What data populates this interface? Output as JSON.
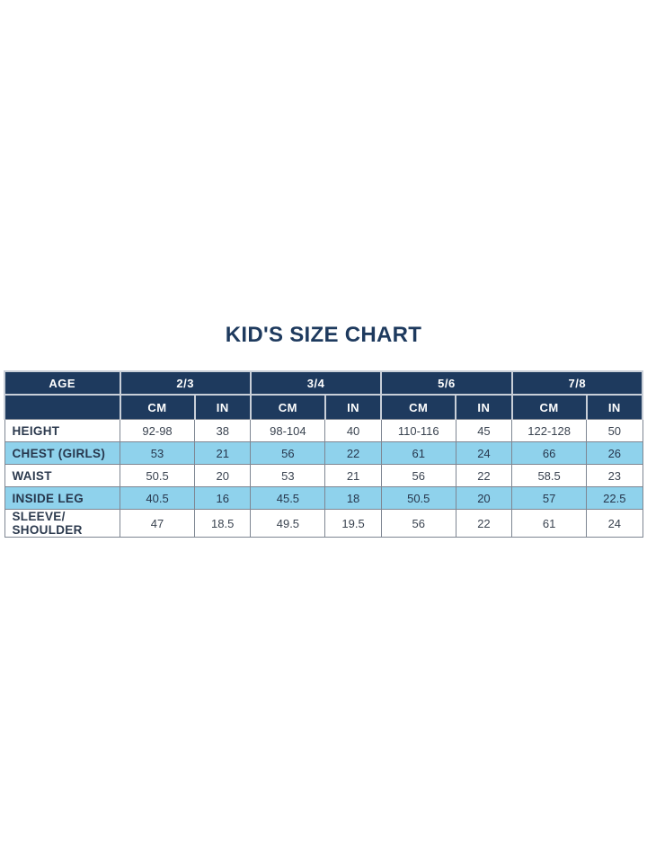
{
  "colors": {
    "header_navy": "#1e3a5e",
    "highlight_blue": "#8fd2ec",
    "row_white": "#ffffff",
    "title_text": "#1e3a5e",
    "header_text": "#ffffff",
    "data_text": "#3a4350",
    "grid_border": "#7e8692",
    "header_separator": "#c9cfd8"
  },
  "chart_data": {
    "type": "table",
    "title": "KID'S SIZE CHART",
    "header": {
      "age_label": "AGE",
      "age_groups": [
        "2/3",
        "3/4",
        "5/6",
        "7/8"
      ],
      "units": [
        "CM",
        "IN"
      ]
    },
    "columns": [
      "AGE",
      "2/3 CM",
      "2/3 IN",
      "3/4 CM",
      "3/4 IN",
      "5/6 CM",
      "5/6 IN",
      "7/8 CM",
      "7/8 IN"
    ],
    "rows": [
      {
        "label": "HEIGHT",
        "highlight": false,
        "values": [
          "92-98",
          "38",
          "98-104",
          "40",
          "110-116",
          "45",
          "122-128",
          "50"
        ]
      },
      {
        "label": "CHEST (GIRLS)",
        "highlight": true,
        "values": [
          "53",
          "21",
          "56",
          "22",
          "61",
          "24",
          "66",
          "26"
        ]
      },
      {
        "label": "WAIST",
        "highlight": false,
        "values": [
          "50.5",
          "20",
          "53",
          "21",
          "56",
          "22",
          "58.5",
          "23"
        ]
      },
      {
        "label": "INSIDE LEG",
        "highlight": true,
        "values": [
          "40.5",
          "16",
          "45.5",
          "18",
          "50.5",
          "20",
          "57",
          "22.5"
        ]
      },
      {
        "label": "SLEEVE/ SHOULDER",
        "highlight": false,
        "values": [
          "47",
          "18.5",
          "49.5",
          "19.5",
          "56",
          "22",
          "61",
          "24"
        ]
      }
    ]
  }
}
